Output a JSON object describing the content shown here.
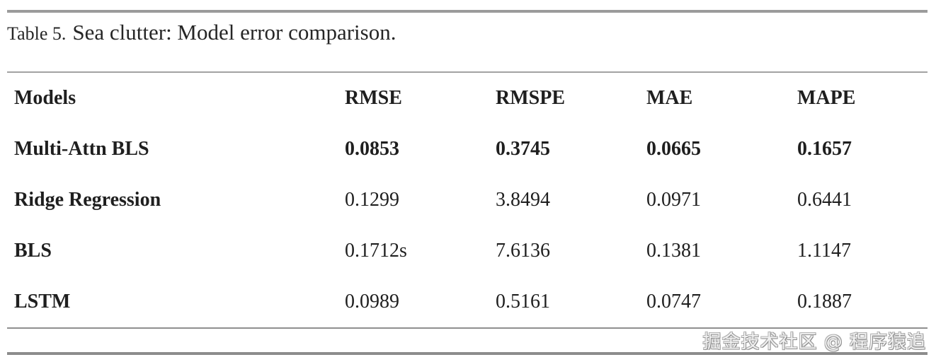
{
  "caption": {
    "prefix": "Table 5.",
    "text": "Sea clutter: Model error comparison."
  },
  "table": {
    "headers": [
      "Models",
      "RMSE",
      "RMSPE",
      "MAE",
      "MAPE"
    ],
    "rows": [
      {
        "model": "Multi-Attn BLS",
        "bold": true,
        "values": [
          "0.0853",
          "0.3745",
          "0.0665",
          "0.1657"
        ]
      },
      {
        "model": "Ridge Regression",
        "bold": false,
        "values": [
          "0.1299",
          "3.8494",
          "0.0971",
          "0.6441"
        ]
      },
      {
        "model": "BLS",
        "bold": false,
        "values": [
          "0.1712s",
          "7.6136",
          "0.1381",
          "1.1147"
        ]
      },
      {
        "model": "LSTM",
        "bold": false,
        "values": [
          "0.0989",
          "0.5161",
          "0.0747",
          "0.1887"
        ]
      }
    ]
  },
  "watermark": {
    "text": "掘金技术社区 @ 程序猿追"
  },
  "colors": {
    "rule_gray": "#9b9b9b",
    "text": "#1f1f1f",
    "watermark_gray": "#a2a2a2",
    "background": "#ffffff"
  }
}
